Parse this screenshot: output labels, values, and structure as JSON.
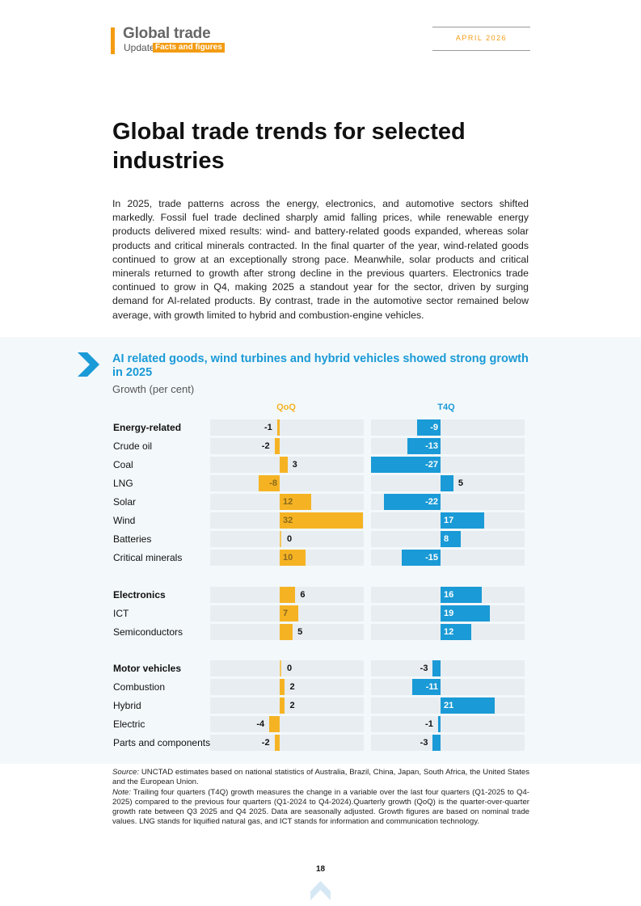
{
  "header": {
    "title": "Global trade",
    "subtitle": "Update",
    "tag": "Facts and figures",
    "date": "APRIL 2026"
  },
  "page_title": "Global trade trends for selected industries",
  "intro": "In 2025, trade patterns across the energy, electronics, and automotive sectors shifted markedly. Fossil fuel trade declined sharply amid falling prices, while renewable energy products delivered mixed results: wind- and battery-related goods expanded, whereas solar products and critical minerals contracted. In the final quarter of the year, wind-related goods continued to grow at an exceptionally strong pace. Meanwhile, solar products and critical minerals returned to growth after strong decline in the previous quarters. Electronics trade continued to grow in Q4, making 2025 a standout year for the sector, driven by surging demand for AI-related products. By contrast, trade in the automotive sector remained below average, with growth limited to hybrid and combustion-engine vehicles.",
  "chart_data": {
    "type": "bar",
    "title": "AI related goods, wind turbines and hybrid vehicles showed strong growth in 2025",
    "subtitle": "Growth (per cent)",
    "colors": {
      "qoq": "#f5b324",
      "t4q": "#1a9ad6"
    },
    "series": [
      {
        "name": "QoQ",
        "values": [
          -1,
          -2,
          3,
          -8,
          12,
          32,
          0,
          10,
          6,
          7,
          5,
          0,
          2,
          2,
          -4,
          -2
        ]
      },
      {
        "name": "T4Q",
        "values": [
          -9,
          -13,
          -27,
          5,
          -22,
          17,
          8,
          -15,
          16,
          19,
          12,
          -3,
          -11,
          21,
          -1,
          -3
        ]
      }
    ],
    "categories": [
      "Energy-related",
      "Crude oil",
      "Coal",
      "LNG",
      "Solar",
      "Wind",
      "Batteries",
      "Critical minerals",
      "Electronics",
      "ICT",
      "Semiconductors",
      "Motor vehicles",
      "Combustion",
      "Hybrid",
      "Electric",
      "Parts and components"
    ],
    "group_headers": [
      "Energy-related",
      "Electronics",
      "Motor vehicles"
    ],
    "axis_ranges": {
      "qoq": [
        -27,
        32
      ],
      "t4q": [
        -32,
        74
      ]
    }
  },
  "footer": {
    "source_label": "Source:",
    "source_text": " UNCTAD estimates based on national statistics of Australia, Brazil, China, Japan, South Africa, the United States and the European Union.",
    "note_label": "Note:",
    "note_text": " Trailing four quarters (T4Q) growth measures the change in a variable over the last four quarters (Q1-2025 to Q4-2025) compared to the previous four quarters (Q1-2024 to Q4-2024).Quarterly growth (QoQ) is the quarter-over-quarter growth rate between Q3 2025 and Q4 2025. Data are seasonally adjusted. Growth figures are based on nominal trade values. LNG stands for liquified natural gas, and ICT stands for information and communication technology.",
    "page_number": "18"
  }
}
